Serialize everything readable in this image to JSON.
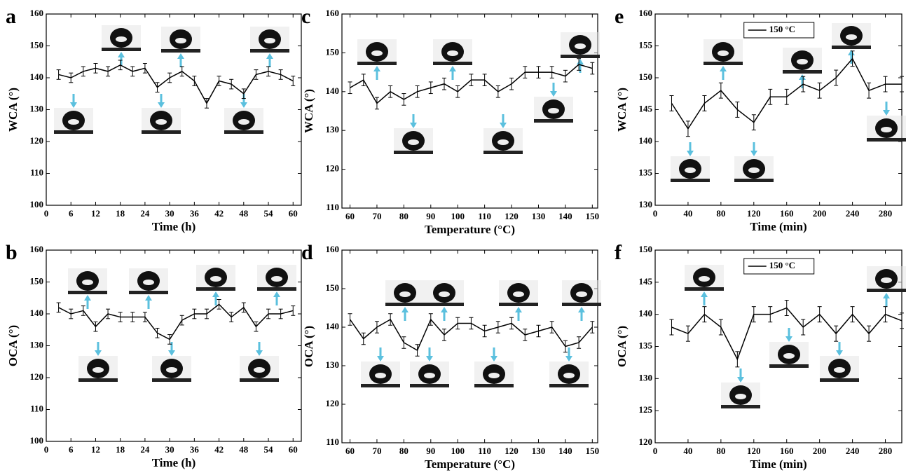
{
  "chart_data": [
    {
      "type": "line",
      "panel_label": "a",
      "xlabel": "Time (h)",
      "ylabel": "WCA (°)",
      "color": "#000000",
      "error": 1.5,
      "x": [
        3,
        6,
        9,
        12,
        15,
        18,
        21,
        24,
        27,
        30,
        33,
        36,
        39,
        42,
        45,
        48,
        51,
        54,
        57,
        60
      ],
      "values": [
        141,
        140,
        142,
        143,
        142,
        144,
        142,
        143,
        137,
        140,
        142,
        139,
        132,
        139,
        138,
        135,
        141,
        142,
        141,
        139
      ],
      "xlim": [
        0,
        62
      ],
      "ylim": [
        100,
        160
      ],
      "xticks": [
        0,
        6,
        12,
        18,
        24,
        30,
        36,
        42,
        48,
        54,
        60
      ],
      "yticks": [
        100,
        110,
        120,
        130,
        140,
        150,
        160
      ]
    },
    {
      "type": "line",
      "panel_label": "b",
      "xlabel": "Time (h)",
      "ylabel": "OCA (°)",
      "color": "#000000",
      "error": 1.5,
      "x": [
        3,
        6,
        9,
        12,
        15,
        18,
        21,
        24,
        27,
        30,
        33,
        36,
        39,
        42,
        45,
        48,
        51,
        54,
        57,
        60
      ],
      "values": [
        142,
        140,
        141,
        136,
        140,
        139,
        139,
        139,
        134,
        132,
        138,
        140,
        140,
        143,
        139,
        142,
        136,
        140,
        140,
        141
      ],
      "xlim": [
        0,
        62
      ],
      "ylim": [
        100,
        160
      ],
      "xticks": [
        0,
        6,
        12,
        18,
        24,
        30,
        36,
        42,
        48,
        54,
        60
      ],
      "yticks": [
        100,
        110,
        120,
        130,
        140,
        150,
        160
      ]
    },
    {
      "type": "line",
      "panel_label": "c",
      "xlabel": "Temperature (°C)",
      "ylabel": "WCA (°)",
      "color": "#000000",
      "error": 1.5,
      "x": [
        60,
        65,
        70,
        75,
        80,
        85,
        90,
        95,
        100,
        105,
        110,
        115,
        120,
        125,
        130,
        135,
        140,
        145,
        150
      ],
      "values": [
        141,
        143,
        137,
        140,
        138,
        140,
        141,
        142,
        140,
        143,
        143,
        140,
        142,
        145,
        145,
        145,
        144,
        147,
        146
      ],
      "xlim": [
        57,
        152
      ],
      "ylim": [
        110,
        160
      ],
      "xticks": [
        60,
        70,
        80,
        90,
        100,
        110,
        120,
        130,
        140,
        150
      ],
      "yticks": [
        110,
        120,
        130,
        140,
        150,
        160
      ]
    },
    {
      "type": "line",
      "panel_label": "d",
      "xlabel": "Temperature (°C)",
      "ylabel": "OCA (°)",
      "color": "#000000",
      "error": 1.5,
      "x": [
        60,
        65,
        70,
        75,
        80,
        85,
        90,
        95,
        100,
        105,
        110,
        115,
        120,
        125,
        130,
        135,
        140,
        145,
        150
      ],
      "values": [
        142,
        137,
        140,
        142,
        136,
        134,
        142,
        138,
        141,
        141,
        139,
        140,
        141,
        138,
        139,
        140,
        135,
        136,
        140
      ],
      "xlim": [
        57,
        152
      ],
      "ylim": [
        110,
        160
      ],
      "xticks": [
        60,
        70,
        80,
        90,
        100,
        110,
        120,
        130,
        140,
        150
      ],
      "yticks": [
        110,
        120,
        130,
        140,
        150,
        160
      ]
    },
    {
      "type": "line",
      "panel_label": "e",
      "xlabel": "Time (min)",
      "ylabel": "WCA (°)",
      "error": 1.2,
      "x": [
        20,
        40,
        60,
        80,
        100,
        120,
        140,
        160,
        180,
        200,
        220,
        240,
        260,
        280,
        300
      ],
      "series": [
        {
          "name": "150 °C",
          "color": "#000000",
          "values": [
            146,
            142,
            146,
            148,
            145,
            143,
            147,
            147,
            149,
            148,
            150,
            153,
            148,
            149,
            149
          ]
        }
      ],
      "xlim": [
        0,
        300
      ],
      "ylim": [
        130,
        160
      ],
      "xticks": [
        0,
        40,
        80,
        120,
        160,
        200,
        240,
        280
      ],
      "yticks": [
        130,
        135,
        140,
        145,
        150,
        155,
        160
      ]
    },
    {
      "type": "line",
      "panel_label": "f",
      "xlabel": "Time (min)",
      "ylabel": "OCA (°)",
      "error": 1.2,
      "x": [
        20,
        40,
        60,
        80,
        100,
        120,
        140,
        160,
        180,
        200,
        220,
        240,
        260,
        280,
        300
      ],
      "series": [
        {
          "name": "150 °C",
          "color": "#000000",
          "values": [
            138,
            137,
            140,
            138,
            133,
            140,
            140,
            141,
            138,
            140,
            137,
            140,
            137,
            140,
            139
          ]
        }
      ],
      "xlim": [
        0,
        300
      ],
      "ylim": [
        120,
        150
      ],
      "xticks": [
        0,
        40,
        80,
        120,
        160,
        200,
        240,
        280
      ],
      "yticks": [
        120,
        125,
        130,
        135,
        140,
        145,
        150
      ]
    }
  ]
}
